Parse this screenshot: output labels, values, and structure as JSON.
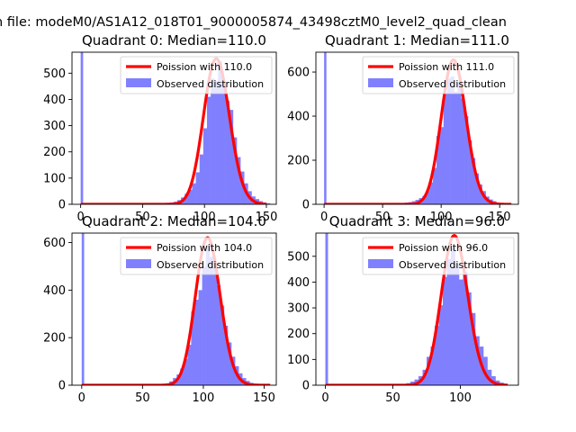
{
  "suptitle": "n file: modeM0/AS1A12_018T01_9000005874_43498cztM0_level2_quad_clean",
  "chart_data": [
    {
      "type": "bar",
      "title": "Quadrant 0: Median=110.0",
      "xlim": [
        -7,
        158
      ],
      "ylim": [
        0,
        580
      ],
      "xticks": [
        0,
        50,
        100,
        150
      ],
      "yticks": [
        0,
        100,
        200,
        300,
        400,
        500
      ],
      "legend_position": "top-right",
      "legend": [
        "Poission with 110.0",
        "Observed distribution"
      ],
      "bin_width": 3,
      "spike": {
        "x": 0,
        "value": 580
      },
      "bars": [
        [
          66,
          3
        ],
        [
          69,
          6
        ],
        [
          72,
          7
        ],
        [
          75,
          10
        ],
        [
          78,
          16
        ],
        [
          81,
          26
        ],
        [
          84,
          40
        ],
        [
          87,
          55
        ],
        [
          90,
          80
        ],
        [
          93,
          122
        ],
        [
          96,
          190
        ],
        [
          99,
          290
        ],
        [
          102,
          410
        ],
        [
          105,
          480
        ],
        [
          108,
          470
        ],
        [
          111,
          545
        ],
        [
          114,
          470
        ],
        [
          117,
          395
        ],
        [
          120,
          360
        ],
        [
          123,
          255
        ],
        [
          126,
          180
        ],
        [
          129,
          125
        ],
        [
          132,
          80
        ],
        [
          135,
          50
        ],
        [
          138,
          30
        ],
        [
          141,
          20
        ],
        [
          144,
          12
        ],
        [
          147,
          7
        ],
        [
          150,
          4
        ]
      ],
      "poisson_mean": 110,
      "curve_peak": 555,
      "curve_x_range": [
        0,
        150
      ]
    },
    {
      "type": "bar",
      "title": "Quadrant 1: Median=111.0",
      "xlim": [
        -7,
        166
      ],
      "ylim": [
        0,
        690
      ],
      "xticks": [
        0,
        50,
        100,
        150
      ],
      "yticks": [
        0,
        200,
        400,
        600
      ],
      "legend_position": "top-right",
      "legend": [
        "Poission with 111.0",
        "Observed distribution"
      ],
      "bin_width": 3,
      "spike": {
        "x": 0,
        "value": 690
      },
      "bars": [
        [
          66,
          4
        ],
        [
          69,
          8
        ],
        [
          72,
          10
        ],
        [
          75,
          14
        ],
        [
          78,
          20
        ],
        [
          81,
          28
        ],
        [
          84,
          38
        ],
        [
          87,
          60
        ],
        [
          90,
          100
        ],
        [
          93,
          165
        ],
        [
          96,
          310
        ],
        [
          99,
          350
        ],
        [
          102,
          500
        ],
        [
          105,
          570
        ],
        [
          108,
          580
        ],
        [
          111,
          510
        ],
        [
          114,
          555
        ],
        [
          117,
          480
        ],
        [
          120,
          400
        ],
        [
          123,
          290
        ],
        [
          126,
          210
        ],
        [
          129,
          140
        ],
        [
          132,
          90
        ],
        [
          135,
          60
        ],
        [
          138,
          35
        ],
        [
          141,
          22
        ],
        [
          144,
          14
        ],
        [
          147,
          8
        ],
        [
          150,
          5
        ],
        [
          153,
          3
        ]
      ],
      "poisson_mean": 111,
      "curve_peak": 655,
      "curve_x_range": [
        0,
        160
      ]
    },
    {
      "type": "bar",
      "title": "Quadrant 2: Median=104.0",
      "xlim": [
        -8,
        160
      ],
      "ylim": [
        0,
        640
      ],
      "xticks": [
        0,
        50,
        100,
        150
      ],
      "yticks": [
        0,
        200,
        400,
        600
      ],
      "legend_position": "top-right",
      "legend": [
        "Poission with 104.0",
        "Observed distribution"
      ],
      "bin_width": 3,
      "spike": {
        "x": 0,
        "value": 640
      },
      "bars": [
        [
          66,
          3
        ],
        [
          69,
          8
        ],
        [
          72,
          16
        ],
        [
          75,
          30
        ],
        [
          78,
          45
        ],
        [
          81,
          70
        ],
        [
          84,
          110
        ],
        [
          87,
          170
        ],
        [
          90,
          310
        ],
        [
          93,
          360
        ],
        [
          96,
          400
        ],
        [
          99,
          500
        ],
        [
          102,
          590
        ],
        [
          105,
          540
        ],
        [
          108,
          500
        ],
        [
          111,
          420
        ],
        [
          114,
          335
        ],
        [
          117,
          250
        ],
        [
          120,
          180
        ],
        [
          123,
          120
        ],
        [
          126,
          80
        ],
        [
          129,
          50
        ],
        [
          132,
          30
        ],
        [
          135,
          18
        ],
        [
          138,
          10
        ],
        [
          141,
          6
        ],
        [
          144,
          3
        ]
      ],
      "poisson_mean": 104,
      "curve_peak": 620,
      "curve_x_range": [
        0,
        155
      ]
    },
    {
      "type": "bar",
      "title": "Quadrant 3: Median=96.0",
      "xlim": [
        -7,
        143
      ],
      "ylim": [
        0,
        590
      ],
      "xticks": [
        0,
        50,
        100
      ],
      "yticks": [
        0,
        100,
        200,
        300,
        400,
        500
      ],
      "legend_position": "top-right",
      "legend": [
        "Poission with 96.0",
        "Observed distribution"
      ],
      "bin_width": 3,
      "spike": {
        "x": 0,
        "value": 590
      },
      "bars": [
        [
          54,
          3
        ],
        [
          57,
          5
        ],
        [
          60,
          8
        ],
        [
          63,
          14
        ],
        [
          66,
          22
        ],
        [
          69,
          35
        ],
        [
          72,
          60
        ],
        [
          75,
          110
        ],
        [
          78,
          150
        ],
        [
          81,
          230
        ],
        [
          84,
          310
        ],
        [
          87,
          420
        ],
        [
          90,
          490
        ],
        [
          93,
          535
        ],
        [
          96,
          470
        ],
        [
          99,
          410
        ],
        [
          102,
          440
        ],
        [
          105,
          360
        ],
        [
          108,
          280
        ],
        [
          111,
          190
        ],
        [
          114,
          150
        ],
        [
          117,
          110
        ],
        [
          120,
          60
        ],
        [
          123,
          35
        ],
        [
          126,
          18
        ],
        [
          129,
          10
        ],
        [
          132,
          5
        ]
      ],
      "poisson_mean": 96,
      "curve_peak": 580,
      "curve_x_range": [
        0,
        135
      ]
    }
  ]
}
